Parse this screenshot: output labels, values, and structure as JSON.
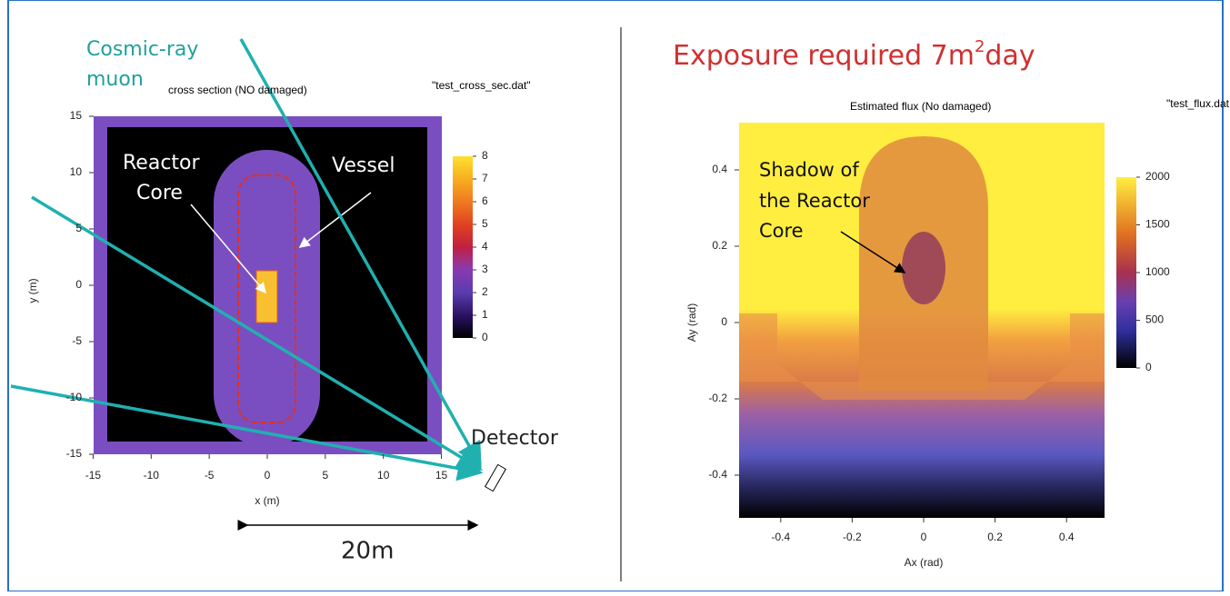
{
  "left_panel": {
    "annotation": [
      "Cosmic-ray",
      "muon"
    ],
    "plot_title": "cross section (NO damaged)",
    "data_file": "\"test_cross_sec.dat\"",
    "xticks": [
      -15,
      -10,
      -5,
      0,
      5,
      10,
      15
    ],
    "yticks": [
      15,
      10,
      5,
      0,
      -5,
      -10,
      -15
    ],
    "x_label": "x (m)",
    "y_label": "y (m)",
    "colorbar_ticks": [
      8,
      7,
      6,
      5,
      4,
      3,
      2,
      1,
      0
    ],
    "labels": {
      "core": [
        "Reactor",
        "Core"
      ],
      "vessel": "Vessel",
      "detector": "Detector",
      "distance": "20m"
    }
  },
  "right_panel": {
    "title": [
      "Exposure required 7m",
      "2",
      "day"
    ],
    "plot_title": "Estimated flux (No damaged)",
    "data_file": "\"test_flux.dat",
    "xticks": [
      -0.4,
      -0.2,
      0,
      0.2,
      0.4
    ],
    "yticks": [
      0.4,
      0.2,
      0,
      -0.2,
      -0.4
    ],
    "x_label": "Ax (rad)",
    "y_label": "Ay (rad)",
    "colorbar_ticks": [
      2000,
      1500,
      1000,
      500,
      0
    ],
    "annotation": [
      "Shadow of",
      "the Reactor",
      "Core"
    ]
  }
}
